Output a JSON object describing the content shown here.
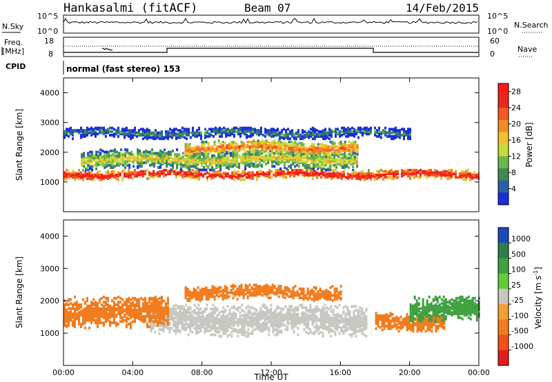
{
  "header": {
    "station": "Hankasalmi (fitACF)",
    "beam": "Beam 07",
    "date": "14/Feb/2015"
  },
  "noise_panel": {
    "left_label": "N.Sky",
    "left_ticks": [
      "10^5",
      "10^0"
    ],
    "right_label": "N.Search",
    "right_ticks": [
      "10^5",
      "10^0"
    ]
  },
  "freq_panel": {
    "label_line1": "Freq.",
    "label_line2": "[MHz]",
    "left_ticks": [
      "18",
      "8"
    ],
    "right_label": "Nave",
    "right_ticks": [
      "60",
      "0"
    ]
  },
  "cpid_panel": {
    "label": "CPID",
    "text": "normal (fast stereo) 153"
  },
  "chart_data": [
    {
      "type": "heatmap",
      "quantity": "Power",
      "ylabel": "Slant Range [km]",
      "xlabel": "",
      "ylim": [
        0,
        4500
      ],
      "y_ticks": [
        "1000",
        "2000",
        "3000",
        "4000"
      ],
      "x_ticks": [],
      "colorbar": {
        "label": "Power [dB]",
        "ticks": [
          "4",
          "8",
          "12",
          "16",
          "20",
          "24",
          "28"
        ],
        "range": [
          0,
          30
        ],
        "colors": [
          "#1a2edb",
          "#2b60a8",
          "#3d8a52",
          "#6ab84a",
          "#c9d83a",
          "#f2c030",
          "#f28c24",
          "#f25a1e",
          "#e8281a",
          "#ff1a1a"
        ]
      },
      "bands": [
        {
          "from_hour": 0,
          "to_hour": 24,
          "center_km": 1300,
          "width_km": 180,
          "level_db": 28
        },
        {
          "from_hour": 1,
          "to_hour": 17,
          "center_km": 1800,
          "width_km": 350,
          "level_db": 16
        },
        {
          "from_hour": 7,
          "to_hour": 17,
          "center_km": 2200,
          "width_km": 250,
          "level_db": 22
        },
        {
          "from_hour": 0,
          "to_hour": 20,
          "center_km": 2700,
          "width_km": 200,
          "level_db": 8
        }
      ]
    },
    {
      "type": "heatmap",
      "quantity": "Velocity",
      "ylabel": "Slant Range [km]",
      "xlabel": "Time UT",
      "ylim": [
        0,
        4500
      ],
      "y_ticks": [
        "1000",
        "2000",
        "3000",
        "4000"
      ],
      "x_ticks": [
        "00:00",
        "04:00",
        "08:00",
        "12:00",
        "16:00",
        "20:00",
        "00:00"
      ],
      "colorbar": {
        "label_prefix": "Velocity",
        "label_unit": "[m s",
        "label_exp": "-1",
        "label_close": "]",
        "ticks": [
          "1000",
          "500",
          "100",
          "25",
          "-25",
          "-100",
          "-500",
          "-1000"
        ],
        "colors": [
          "#1a4ab8",
          "#2c7f4a",
          "#3fa040",
          "#66cc33",
          "#c8c8c0",
          "#f2a030",
          "#f27c1e",
          "#f2501a",
          "#e61a1a"
        ]
      },
      "bands": [
        {
          "from_hour": 5,
          "to_hour": 17.5,
          "center_km": 1450,
          "width_km": 500,
          "velocity": 0
        },
        {
          "from_hour": 0,
          "to_hour": 6,
          "center_km": 1700,
          "width_km": 500,
          "velocity": -300
        },
        {
          "from_hour": 7,
          "to_hour": 16,
          "center_km": 2300,
          "width_km": 250,
          "velocity": -200
        },
        {
          "from_hour": 18,
          "to_hour": 22,
          "center_km": 1400,
          "width_km": 300,
          "velocity": -300
        },
        {
          "from_hour": 20,
          "to_hour": 24,
          "center_km": 1800,
          "width_km": 400,
          "velocity": 200
        }
      ]
    }
  ]
}
